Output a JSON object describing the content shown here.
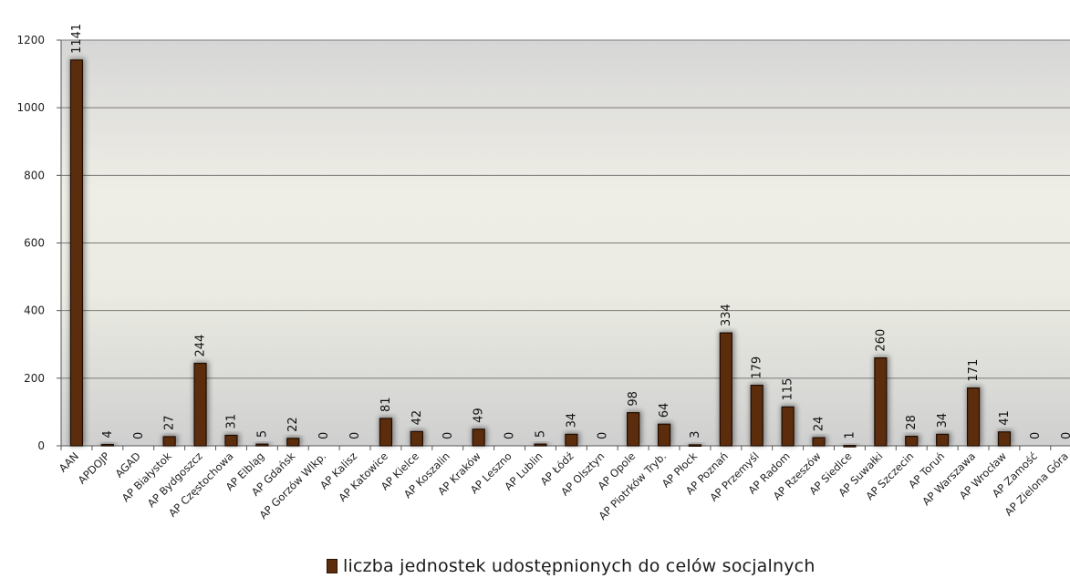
{
  "chart_data": {
    "type": "bar",
    "categories": [
      "AAN",
      "APDOJP",
      "AGAD",
      "AP Białystok",
      "AP Bydgoszcz",
      "AP Częstochowa",
      "AP Elbląg",
      "AP Gdańsk",
      "AP Gorzów Wlkp.",
      "AP Kalisz",
      "AP Katowice",
      "AP Kielce",
      "AP Koszalin",
      "AP Kraków",
      "AP Leszno",
      "AP Lublin",
      "AP Łódź",
      "AP Olsztyn",
      "AP Opole",
      "AP Piotrków Tryb.",
      "AP Płock",
      "AP Poznań",
      "AP Przemyśl",
      "AP Radom",
      "AP Rzeszów",
      "AP Siedlce",
      "AP Suwałki",
      "AP Szczecin",
      "AP Toruń",
      "AP Warszawa",
      "AP Wrocław",
      "AP Zamość",
      "AP Zielona Góra"
    ],
    "series": [
      {
        "name": "liczba jednostek udostępnionych  do celów socjalnych",
        "values": [
          1141,
          4,
          0,
          27,
          244,
          31,
          5,
          22,
          0,
          0,
          81,
          42,
          0,
          49,
          0,
          5,
          34,
          0,
          98,
          64,
          3,
          334,
          179,
          115,
          24,
          1,
          260,
          28,
          34,
          171,
          41,
          0,
          0
        ]
      }
    ],
    "ylim": [
      0,
      1200
    ],
    "yticks": [
      0,
      200,
      400,
      600,
      800,
      1000,
      1200
    ],
    "grid": true,
    "legend_position": "bottom",
    "colors": {
      "bar": "#5c2d0c",
      "bar_edge": "#1e0c00",
      "grid": "#7a7a7a"
    }
  }
}
